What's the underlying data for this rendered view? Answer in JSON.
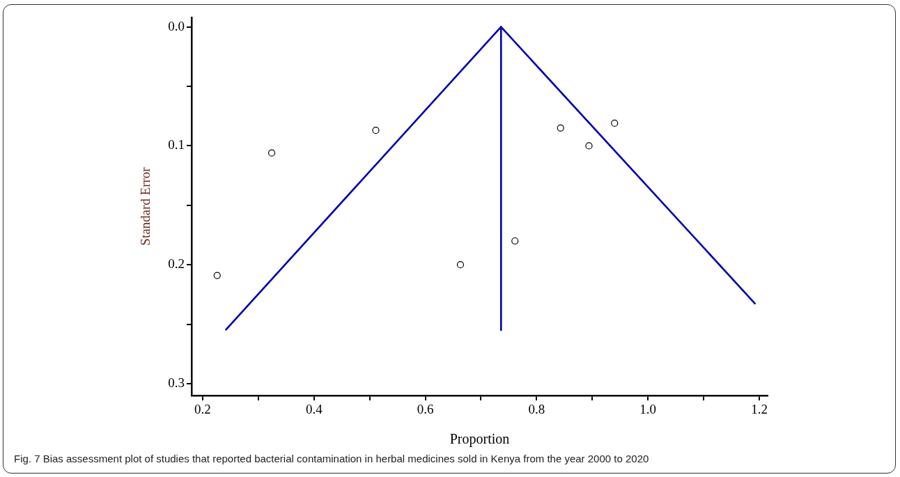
{
  "chart_data": {
    "type": "scatter",
    "xlabel": "Proportion",
    "ylabel": "Standard Error",
    "annotations": [
      "Fig. 7 Bias assessment plot of studies that reported bacterial contamination in herbal medicines sold in Kenya from the year 2000 to 2020"
    ],
    "series": [
      {
        "marker": "circle",
        "color": "#000000",
        "x": [
          0.226,
          0.324,
          0.511,
          0.663,
          0.761,
          0.843,
          0.894,
          0.94
        ],
        "values": [
          0.209,
          0.106,
          0.087,
          0.2,
          0.18,
          0.085,
          0.1,
          0.081
        ]
      },
      {
        "type": "line",
        "color": "#0000b0",
        "x": [
          0.241,
          0.736,
          1.193
        ],
        "values": [
          0.255,
          0,
          0.233
        ]
      },
      {
        "type": "line",
        "color": "#0000b0",
        "x": [
          0.736,
          0.736
        ],
        "values": [
          0,
          0.255
        ]
      }
    ],
    "legend": false,
    "grid": false,
    "xlim": [
      0.18,
      1.215
    ],
    "ylim": [
      0.31,
      -0.008
    ],
    "xticks": [
      0.2,
      {
        "value": 0.3,
        "label": null
      },
      0.4,
      {
        "value": 0.5,
        "label": null
      },
      0.6,
      {
        "value": 0.7,
        "label": null
      },
      0.8,
      {
        "value": 0.9,
        "label": null
      },
      {
        "value": 1.0,
        "label": "1.0"
      },
      {
        "value": 1.1,
        "label": null
      },
      1.2
    ],
    "yticks": [
      {
        "value": 0,
        "label": "0.0"
      },
      {
        "value": 0.05,
        "label": null
      },
      0.1,
      {
        "value": 0.15,
        "label": null
      },
      0.2,
      {
        "value": 0.25,
        "label": null
      },
      0.3
    ]
  }
}
